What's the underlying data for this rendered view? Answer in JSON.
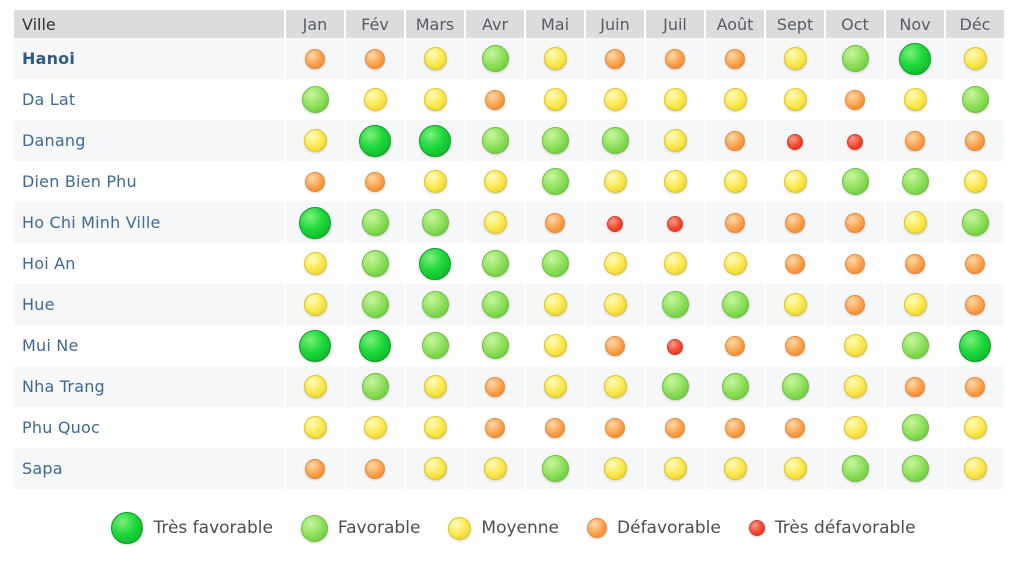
{
  "header": {
    "city_label": "Ville",
    "months": [
      "Jan",
      "Fév",
      "Mars",
      "Avr",
      "Mai",
      "Juin",
      "Juil",
      "Août",
      "Sept",
      "Oct",
      "Nov",
      "Déc"
    ]
  },
  "levels": {
    "5": {
      "label": "Très favorable",
      "color": "#1cd83a"
    },
    "4": {
      "label": "Favorable",
      "color": "#8ee05a"
    },
    "3": {
      "label": "Moyenne",
      "color": "#fbe94e"
    },
    "2": {
      "label": "Défavorable",
      "color": "#fba04a"
    },
    "1": {
      "label": "Très défavorable",
      "color": "#f5472f"
    }
  },
  "rows": [
    {
      "city": "Hanoi",
      "highlight": true,
      "ratings": [
        2,
        2,
        3,
        4,
        3,
        2,
        2,
        2,
        3,
        4,
        5,
        3
      ]
    },
    {
      "city": "Da Lat",
      "highlight": false,
      "ratings": [
        4,
        3,
        3,
        2,
        3,
        3,
        3,
        3,
        3,
        2,
        3,
        4
      ]
    },
    {
      "city": "Danang",
      "highlight": false,
      "ratings": [
        3,
        5,
        5,
        4,
        4,
        4,
        3,
        2,
        1,
        1,
        2,
        2
      ]
    },
    {
      "city": "Dien Bien Phu",
      "highlight": false,
      "ratings": [
        2,
        2,
        3,
        3,
        4,
        3,
        3,
        3,
        3,
        4,
        4,
        3
      ]
    },
    {
      "city": "Ho Chi Minh Ville",
      "highlight": false,
      "ratings": [
        5,
        4,
        4,
        3,
        2,
        1,
        1,
        2,
        2,
        2,
        3,
        4
      ]
    },
    {
      "city": "Hoi An",
      "highlight": false,
      "ratings": [
        3,
        4,
        5,
        4,
        4,
        3,
        3,
        3,
        2,
        2,
        2,
        2
      ]
    },
    {
      "city": "Hue",
      "highlight": false,
      "ratings": [
        3,
        4,
        4,
        4,
        3,
        3,
        4,
        4,
        3,
        2,
        3,
        2
      ]
    },
    {
      "city": "Mui Ne",
      "highlight": false,
      "ratings": [
        5,
        5,
        4,
        4,
        3,
        2,
        1,
        2,
        2,
        3,
        4,
        5
      ]
    },
    {
      "city": "Nha Trang",
      "highlight": false,
      "ratings": [
        3,
        4,
        3,
        2,
        3,
        3,
        4,
        4,
        4,
        3,
        2,
        2
      ]
    },
    {
      "city": "Phu Quoc",
      "highlight": false,
      "ratings": [
        3,
        3,
        3,
        2,
        2,
        2,
        2,
        2,
        2,
        3,
        4,
        3
      ]
    },
    {
      "city": "Sapa",
      "highlight": false,
      "ratings": [
        2,
        2,
        3,
        3,
        4,
        3,
        3,
        3,
        3,
        4,
        4,
        3
      ]
    }
  ],
  "legend": [
    {
      "level": 5,
      "label": "Très favorable"
    },
    {
      "level": 4,
      "label": "Favorable"
    },
    {
      "level": 3,
      "label": "Moyenne"
    },
    {
      "level": 2,
      "label": "Défavorable"
    },
    {
      "level": 1,
      "label": "Très défavorable"
    }
  ]
}
